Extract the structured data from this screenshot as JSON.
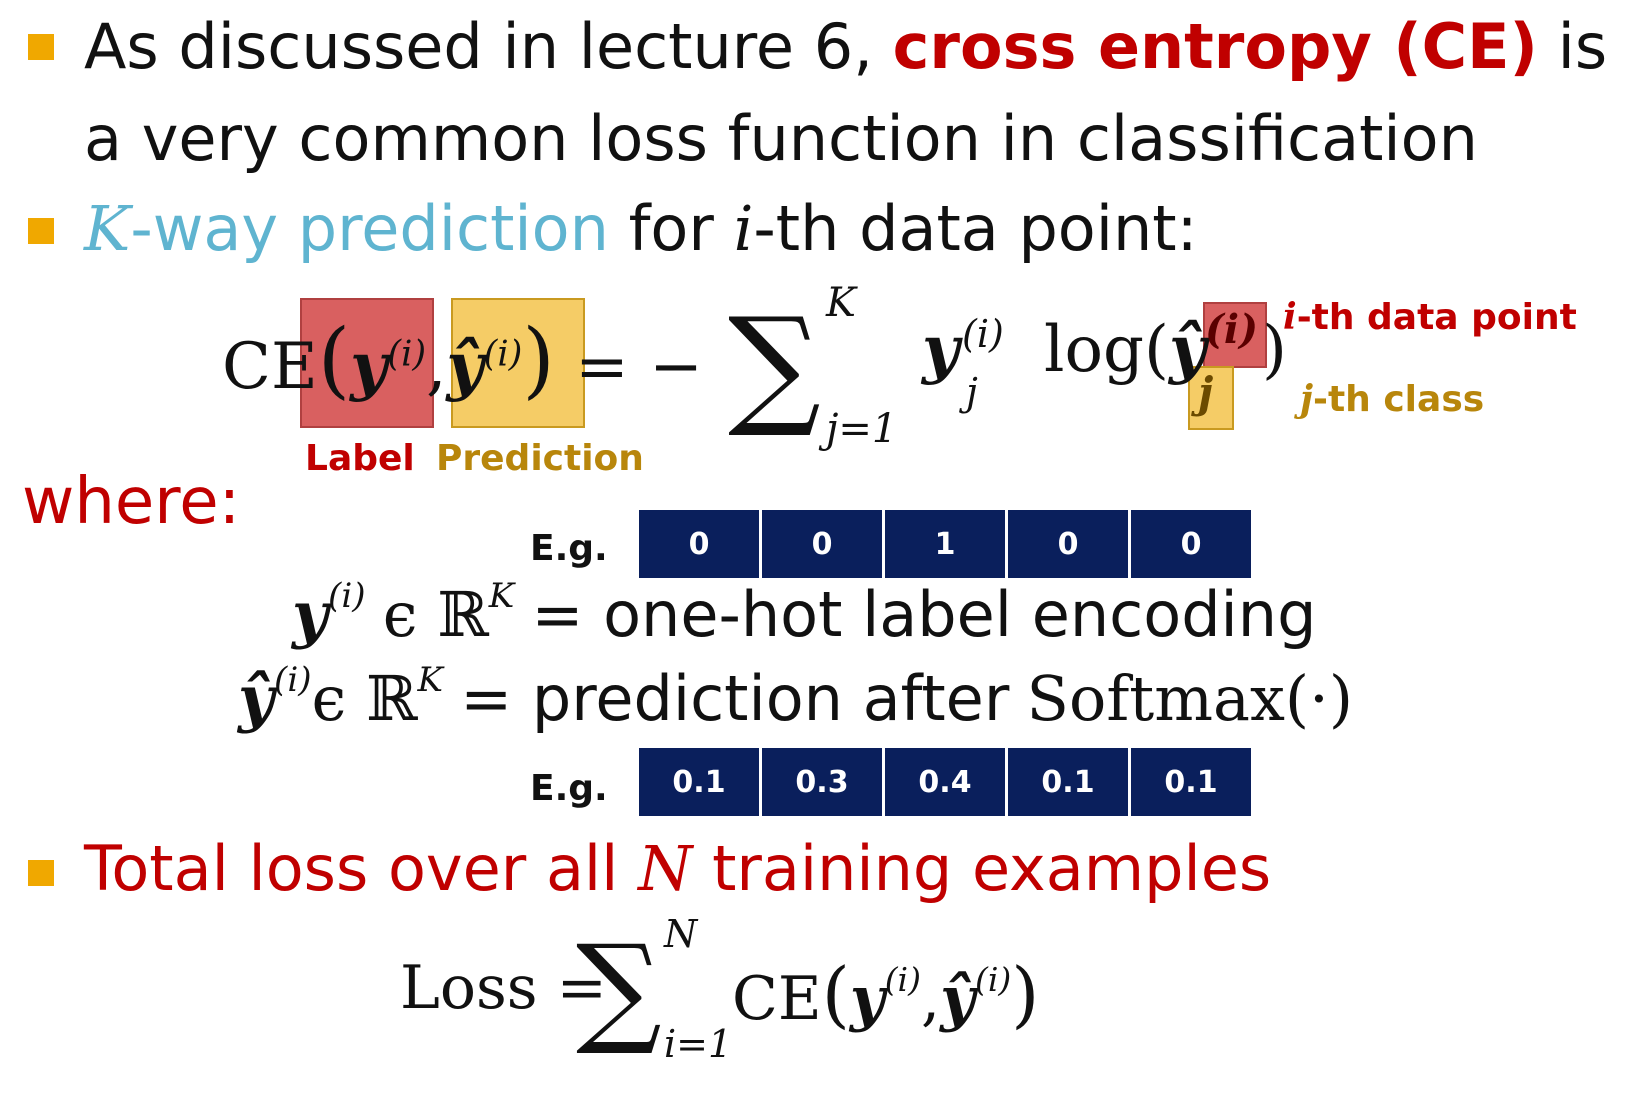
{
  "bullets": {
    "b1_line1_pre": "As discussed in lecture 6,",
    "b1_line1_highlight": "cross entropy (CE)",
    "b1_line1_post": "is",
    "b1_line2": "a very common loss function in classification",
    "b2_var": "K",
    "b2_highlight": "-way prediction",
    "b2_mid": "for",
    "b2_ivar": "i",
    "b2_post": "-th data point:",
    "b3_pre": "Total loss over all",
    "b3_var": "N",
    "b3_post": "training examples"
  },
  "formula_ce": {
    "func": "CE",
    "eq": "= −",
    "sum_top": "K",
    "sum_bottom": "j=1",
    "log": "log(",
    "label_tag": "Label",
    "prediction_tag": "Prediction",
    "i_tag": "i",
    "i_tag_rest": "-th data point",
    "j_tag": "j",
    "j_tag_rest": "-th class"
  },
  "where_label": "where:",
  "eg_label": "E.g.",
  "onehot_cells": [
    "0",
    "0",
    "1",
    "0",
    "0"
  ],
  "softmax_cells": [
    "0.1",
    "0.3",
    "0.4",
    "0.1",
    "0.1"
  ],
  "defs": {
    "label_def": "= one-hot label encoding",
    "pred_def_pre": "= prediction after",
    "pred_def_fn": "Softmax(·)"
  },
  "formula_loss": {
    "lhs": "Loss =",
    "sum_top": "N",
    "sum_bottom": "i=1",
    "func": "CE"
  },
  "colors": {
    "accent_red": "#c00000",
    "accent_blue": "#5fb4d0",
    "bullet": "#f0a800",
    "navy": "#0a1f5c",
    "gold": "#b8860b"
  }
}
